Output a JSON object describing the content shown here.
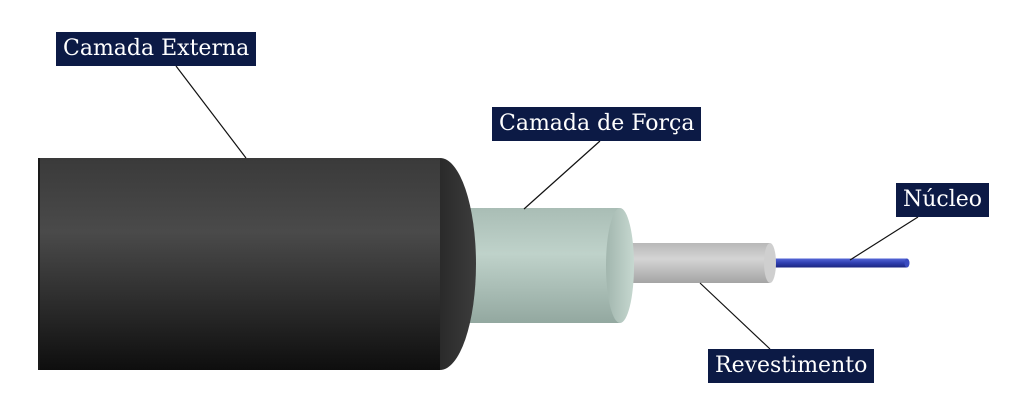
{
  "labels": {
    "outer_layer": "Camada Externa",
    "strength_layer": "Camada de Força",
    "core": "Núcleo",
    "coating": "Revestimento"
  },
  "colors": {
    "label_background": "#0c1a45",
    "label_text": "#ffffff",
    "outer_jacket": "#2b2b2b",
    "strength_layer": "#b4c8c0",
    "coating": "#c4c4c4",
    "core": "#2f3fb0",
    "leader_line": "#111111"
  }
}
